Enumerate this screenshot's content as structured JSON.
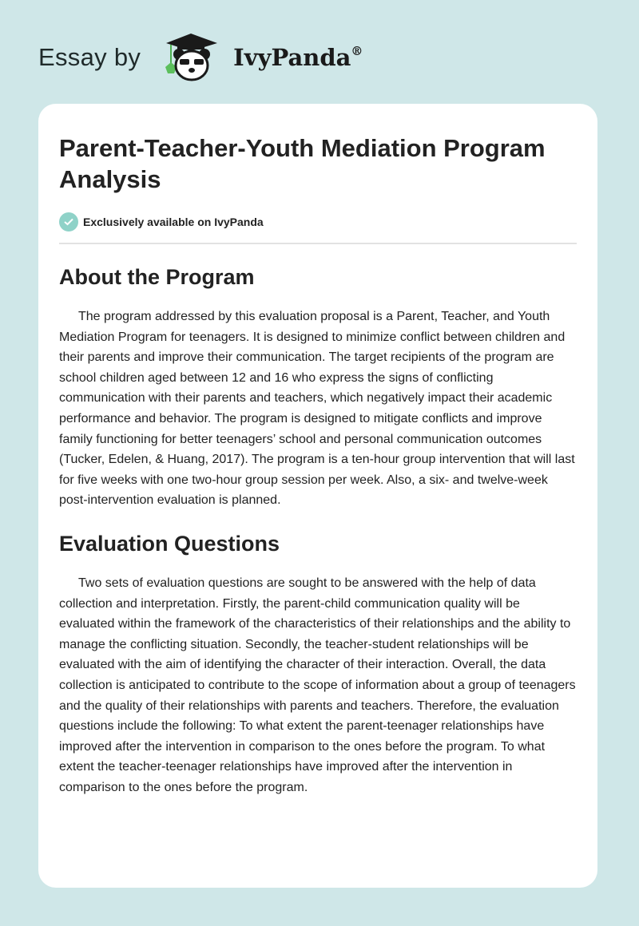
{
  "brand": {
    "prefix": "Essay by",
    "name": "IvyPanda",
    "reg": "®",
    "logo_icon": "panda-graduate-icon"
  },
  "article": {
    "title": "Parent-Teacher-Youth Mediation Program Analysis",
    "badge": "Exclusively available on IvyPanda",
    "badge_color": "#8fd2c8",
    "sections": [
      {
        "heading": "About the Program",
        "body": "The program addressed by this evaluation proposal is a Parent, Teacher, and Youth Mediation Program for teenagers. It is designed to minimize conflict between children and their parents and improve their communication. The target recipients of the program are school children aged between 12 and 16 who express the signs of conflicting communication with their parents and teachers, which negatively impact their academic performance and behavior. The program is designed to mitigate conflicts and improve family functioning for better teenagers’ school and personal communication outcomes (Tucker, Edelen, & Huang, 2017). The program is a ten-hour group intervention that will last for five weeks with one two-hour group session per week. Also, a six- and twelve-week post-intervention evaluation is planned."
      },
      {
        "heading": "Evaluation Questions",
        "body": "Two sets of evaluation questions are sought to be answered with the help of data collection and interpretation. Firstly, the parent-child communication quality will be evaluated within the framework of the characteristics of their relationships and the ability to manage the conflicting situation. Secondly, the teacher-student relationships will be evaluated with the aim of identifying the character of their interaction. Overall, the data collection is anticipated to contribute to the scope of information about a group of teenagers and the quality of their relationships with parents and teachers. Therefore, the evaluation questions include the following: To what extent the parent-teenager relationships have improved after the intervention in comparison to the ones before the program. To what extent the teacher-teenager relationships have improved after the intervention in comparison to the ones before the program."
      }
    ]
  }
}
